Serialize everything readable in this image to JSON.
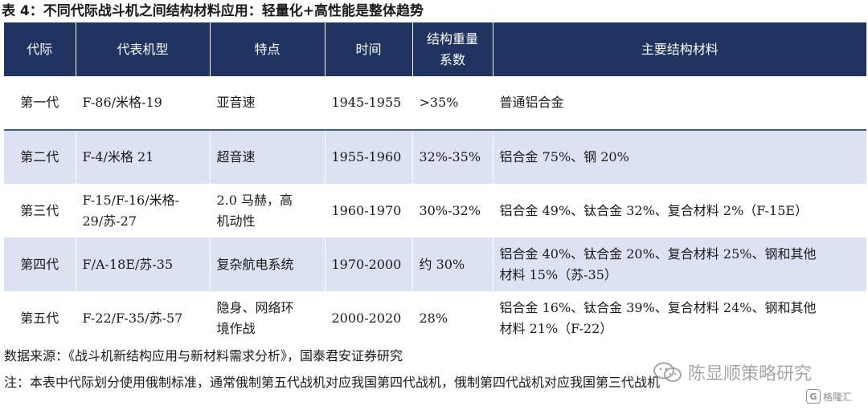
{
  "title": "表 4：不同代际战斗机之间结构材料应用：轻量化+高性能是整体趋势",
  "headers": {
    "generation": "代际",
    "aircraft": "代表机型",
    "feature": "特点",
    "period": "时间",
    "weight_ratio_l1": "结构重量",
    "weight_ratio_l2": "系数",
    "materials": "主要结构材料"
  },
  "rows": [
    {
      "generation": "第一代",
      "aircraft_l1": "F-86/米格-19",
      "aircraft_l2": "",
      "feature_l1": "亚音速",
      "feature_l2": "",
      "period": "1945-1955",
      "weight_ratio": ">35%",
      "materials_l1": "普通铝合金",
      "materials_l2": ""
    },
    {
      "generation": "第二代",
      "aircraft_l1": "F-4/米格 21",
      "aircraft_l2": "",
      "feature_l1": "超音速",
      "feature_l2": "",
      "period": "1955-1960",
      "weight_ratio": "32%-35%",
      "materials_l1": "铝合金 75%、钢 20%",
      "materials_l2": ""
    },
    {
      "generation": "第三代",
      "aircraft_l1": "F-15/F-16/米格-",
      "aircraft_l2": "29/苏-27",
      "feature_l1": "2.0 马赫，高",
      "feature_l2": "机动性",
      "period": "1960-1970",
      "weight_ratio": "30%-32%",
      "materials_l1": "铝合金 49%、钛合金 32%、复合材料 2%（F-15E）",
      "materials_l2": ""
    },
    {
      "generation": "第四代",
      "aircraft_l1": "F/A-18E/苏-35",
      "aircraft_l2": "",
      "feature_l1": "复杂航电系统",
      "feature_l2": "",
      "period": "1970-2000",
      "weight_ratio": "约 30%",
      "materials_l1": "铝合金 40%、钛合金 20%、复合材料 25%、钢和其他",
      "materials_l2": "材料 15%（苏-35）"
    },
    {
      "generation": "第五代",
      "aircraft_l1": "F-22/F-35/苏-57",
      "aircraft_l2": "",
      "feature_l1": "隐身、网络环",
      "feature_l2": "境作战",
      "period": "2000-2020",
      "weight_ratio": "28%",
      "materials_l1": "铝合金 16%、钛合金 39%、复合材料 24%、钢和其他",
      "materials_l2": "材料 21%（F-22）"
    }
  ],
  "source": "数据来源：《战斗机新结构应用与新材料需求分析》，国泰君安证券研究",
  "note": "注：本表中代际划分使用俄制标准，通常俄制第五代战机对应我国第四代战机，俄制第四代战机对应我国第三代战机",
  "watermark": {
    "main_text": "陈显顺策略研究",
    "main_icon": "wechat-icon",
    "secondary_text": "格隆汇",
    "secondary_icon_glyph": "G"
  }
}
